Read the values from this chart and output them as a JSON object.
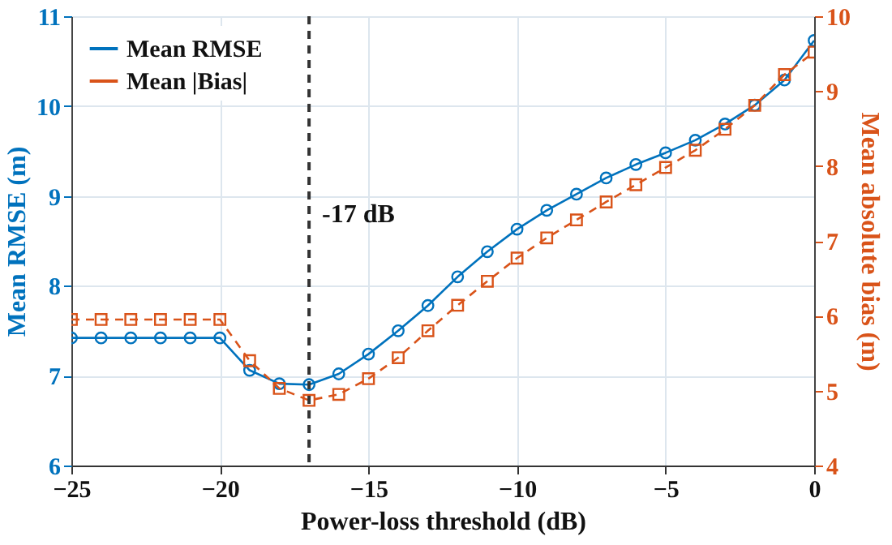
{
  "chart_data": {
    "type": "line",
    "xlabel": "Power-loss threshold (dB)",
    "ylabel": "Mean RMSE (m)",
    "y2label": "Mean absolute bias (m)",
    "x": [
      -25,
      -24,
      -23,
      -22,
      -21,
      -20,
      -19,
      -18,
      -17,
      -16,
      -15,
      -14,
      -13,
      -12,
      -11,
      -10,
      -9,
      -8,
      -7,
      -6,
      -5,
      -4,
      -3,
      -2,
      -1,
      0
    ],
    "series": [
      {
        "name": "Mean RMSE",
        "color": "#0072bd",
        "marker": "circle",
        "line_style": "solid",
        "values": [
          7.42,
          7.42,
          7.42,
          7.42,
          7.42,
          7.42,
          7.06,
          6.91,
          6.9,
          7.02,
          7.24,
          7.5,
          7.78,
          8.1,
          8.38,
          8.63,
          8.84,
          9.02,
          9.2,
          9.35,
          9.48,
          9.62,
          9.8,
          10.01,
          10.29,
          10.73
        ]
      },
      {
        "name": "Mean |Bias|",
        "color": "#d95319",
        "marker": "square",
        "line_style": "dashed",
        "axis": "y2",
        "values": [
          5.95,
          5.95,
          5.95,
          5.95,
          5.95,
          5.95,
          5.4,
          5.03,
          4.87,
          4.95,
          5.16,
          5.44,
          5.8,
          6.14,
          6.46,
          6.77,
          7.04,
          7.28,
          7.52,
          7.75,
          7.98,
          8.21,
          8.49,
          8.81,
          9.22,
          9.52
        ]
      }
    ],
    "xlim": [
      -25,
      0
    ],
    "xticks": [
      -25,
      -20,
      -15,
      -10,
      -5,
      0
    ],
    "ylim": [
      6,
      11
    ],
    "yticks": [
      6,
      7,
      8,
      9,
      10,
      11
    ],
    "y2lim": [
      4,
      10
    ],
    "y2ticks": [
      4,
      5,
      6,
      7,
      8,
      9,
      10
    ],
    "ref_lines": [
      {
        "axis": "x",
        "value": -17,
        "label": "-17 dB",
        "color": "#333333",
        "line_style": "dashed"
      }
    ],
    "grid": true,
    "legend": "top left"
  }
}
